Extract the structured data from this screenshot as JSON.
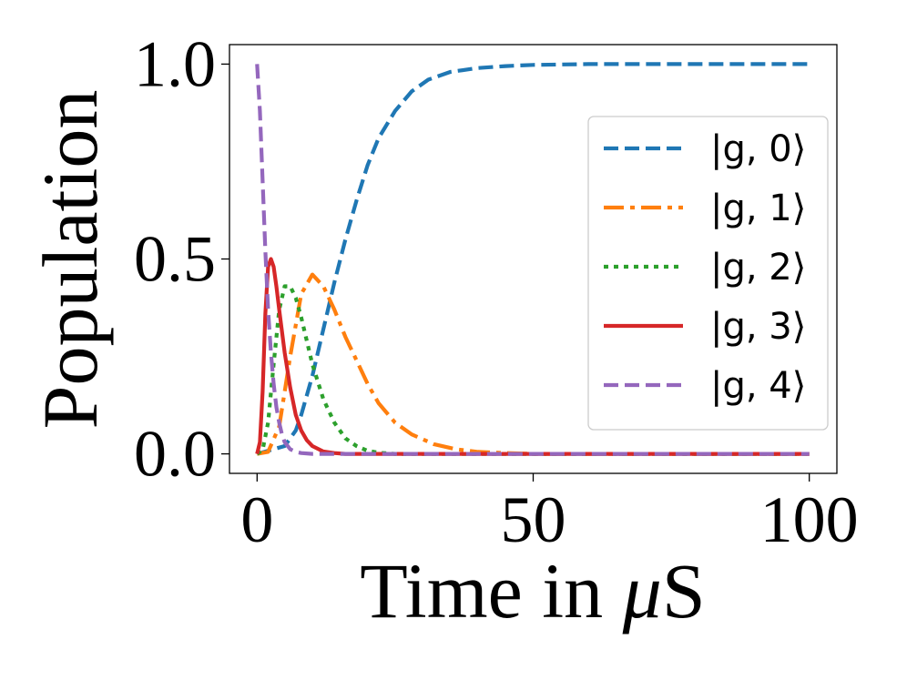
{
  "chart_data": {
    "type": "line",
    "xlabel_text": "Time in ",
    "xlabel_mu": "μ",
    "xlabel_unit": "S",
    "ylabel": "Population",
    "xlim": [
      -5,
      105
    ],
    "ylim": [
      -0.05,
      1.05
    ],
    "x_ticks": [
      0,
      50,
      100
    ],
    "x_tick_labels": [
      "0",
      "50",
      "100"
    ],
    "y_ticks": [
      0.0,
      0.5,
      1.0
    ],
    "y_tick_labels": [
      "0.0",
      "0.5",
      "1.0"
    ],
    "grid": false,
    "legend_position": "right",
    "series": [
      {
        "name": "|g, 0⟩",
        "color": "#1f77b4",
        "dash": "dashed",
        "x": [
          0,
          5,
          7,
          8,
          10,
          12,
          14,
          16,
          18,
          20,
          22,
          25,
          28,
          31,
          35,
          40,
          45,
          50,
          60,
          80,
          100
        ],
        "y": [
          0,
          0.02,
          0.06,
          0.1,
          0.2,
          0.32,
          0.44,
          0.55,
          0.65,
          0.74,
          0.81,
          0.88,
          0.93,
          0.96,
          0.98,
          0.99,
          0.995,
          0.998,
          1.0,
          1.0,
          1.0
        ]
      },
      {
        "name": "|g, 1⟩",
        "color": "#ff7f0e",
        "dash": "dashdot",
        "x": [
          0,
          2,
          4,
          6,
          8,
          10,
          12,
          14,
          16,
          18,
          20,
          22,
          25,
          28,
          32,
          36,
          40,
          45,
          50,
          60,
          80,
          100
        ],
        "y": [
          0,
          0.005,
          0.07,
          0.25,
          0.41,
          0.46,
          0.43,
          0.37,
          0.3,
          0.24,
          0.18,
          0.13,
          0.08,
          0.05,
          0.025,
          0.012,
          0.005,
          0.002,
          0,
          0,
          0,
          0
        ]
      },
      {
        "name": "|g, 2⟩",
        "color": "#2ca02c",
        "dash": "dotted",
        "x": [
          0,
          1,
          2,
          3,
          4,
          5,
          6,
          7,
          8,
          9,
          10,
          12,
          14,
          16,
          18,
          20,
          22,
          25,
          30,
          40,
          60,
          100
        ],
        "y": [
          0,
          0.01,
          0.08,
          0.23,
          0.37,
          0.43,
          0.43,
          0.4,
          0.35,
          0.29,
          0.23,
          0.14,
          0.08,
          0.04,
          0.02,
          0.008,
          0.003,
          0,
          0,
          0,
          0,
          0
        ]
      },
      {
        "name": "|g, 3⟩",
        "color": "#d62728",
        "dash": "solid",
        "x": [
          0,
          0.5,
          1,
          1.5,
          2,
          2.5,
          3,
          3.5,
          4,
          5,
          6,
          7,
          8,
          9,
          10,
          12,
          14,
          16,
          20,
          30,
          50,
          100
        ],
        "y": [
          0,
          0.03,
          0.16,
          0.36,
          0.48,
          0.5,
          0.48,
          0.43,
          0.37,
          0.26,
          0.17,
          0.1,
          0.06,
          0.035,
          0.02,
          0.006,
          0.002,
          0,
          0,
          0,
          0,
          0
        ]
      },
      {
        "name": "|g, 4⟩",
        "color": "#9467bd",
        "dash": "dashed",
        "x": [
          0,
          0.5,
          1,
          1.5,
          2,
          2.5,
          3,
          3.5,
          4,
          4.5,
          5,
          6,
          7,
          8,
          10,
          15,
          20,
          50,
          100
        ],
        "y": [
          1.0,
          0.88,
          0.7,
          0.52,
          0.37,
          0.26,
          0.18,
          0.12,
          0.08,
          0.05,
          0.03,
          0.012,
          0.005,
          0.002,
          0,
          0,
          0,
          0,
          0
        ]
      }
    ]
  }
}
